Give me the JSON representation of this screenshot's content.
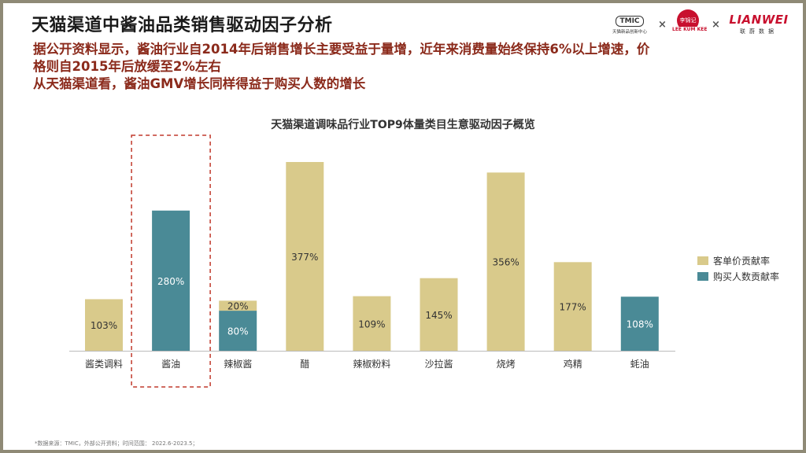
{
  "title": "天猫渠道中酱油品类销售驱动因子分析",
  "subtitle_lines": [
    "据公开资料显示，酱油行业自2014年后销售增长主要受益于量增，近年来消费量始终保持6%以上增速，价",
    "格则自2015年后放缓至2%左右",
    "从天猫渠道看，酱油GMV增长同样得益于购买人数的增长"
  ],
  "logos": {
    "tmic": "TMIC",
    "tmic_sub": "天猫新品创新中心",
    "lkk_mark": "李锦记",
    "lkk": "LEE KUM KEE",
    "lianwei": "LIANWEI",
    "lianwei_sub": "联蔚数据",
    "separator": "×"
  },
  "colors": {
    "price": "#d9ca8b",
    "buyers": "#4a8a96",
    "highlight": "#c0392b",
    "subtitle": "#8b2a1b"
  },
  "source": "*数据来源：TMIC，外部公开资料；时间范围： 2022.6-2023.5；",
  "chart_data": {
    "type": "bar",
    "stacked": true,
    "title": "天猫渠道调味品行业TOP9体量类目生意驱动因子概览",
    "categories": [
      "酱类调料",
      "酱油",
      "辣椒酱",
      "醋",
      "辣椒粉料",
      "沙拉酱",
      "烧烤",
      "鸡精",
      "蚝油"
    ],
    "series": [
      {
        "name": "购买人数贡献率",
        "values": [
          0,
          280,
          80,
          0,
          0,
          0,
          0,
          0,
          108
        ],
        "labels": [
          "",
          "280%",
          "80%",
          "",
          "",
          "",
          "",
          "",
          "108%"
        ]
      },
      {
        "name": "客单价贡献率",
        "values": [
          103,
          0,
          20,
          377,
          109,
          145,
          356,
          177,
          0
        ],
        "labels": [
          "103%",
          "",
          "20%",
          "377%",
          "109%",
          "145%",
          "356%",
          "177%",
          ""
        ]
      }
    ],
    "highlight_category": "酱油",
    "legend_position": "right",
    "grid": false
  }
}
